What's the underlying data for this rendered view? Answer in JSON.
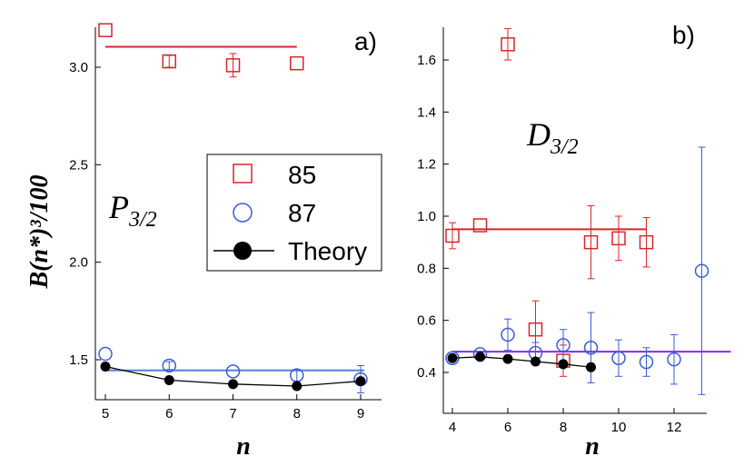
{
  "ylabel": "B(n*)³/100",
  "colors": {
    "iso85": "#d62728",
    "iso87": "#3d5bd4",
    "fit87_a": "#4a86d8",
    "fit87_b": "#8a2be2",
    "theory": "#000000"
  },
  "legend": {
    "entries": [
      {
        "label": "85",
        "marker": "square-open",
        "color": "#d62728"
      },
      {
        "label": "87",
        "marker": "circle-open",
        "color": "#3d5bd4"
      },
      {
        "label": "Theory",
        "marker": "circle-filled-line",
        "color": "#000000"
      }
    ]
  },
  "chart_data": [
    {
      "type": "scatter",
      "panel_label": "a)",
      "series_label": {
        "main": "P",
        "sub": "3/2"
      },
      "xlabel": "n",
      "xlim": [
        4.9,
        9.1
      ],
      "ylim": [
        1.3,
        3.25
      ],
      "xticks": [
        5,
        6,
        7,
        8,
        9
      ],
      "yticks": [
        1.5,
        2.0,
        2.5,
        3.0
      ],
      "ytick_labels": [
        "1.5",
        "2.0",
        "2.5",
        "3.0"
      ],
      "series": [
        {
          "name": "85",
          "marker": "square-open",
          "color": "#d62728",
          "x": [
            5,
            6,
            7,
            8
          ],
          "y": [
            3.19,
            3.03,
            3.01,
            3.02
          ],
          "err": [
            0.0,
            0.03,
            0.06,
            0.0
          ]
        },
        {
          "name": "87",
          "marker": "circle-open",
          "color": "#3d5bd4",
          "x": [
            5,
            6,
            7,
            8,
            9
          ],
          "y": [
            1.53,
            1.47,
            1.44,
            1.42,
            1.4
          ],
          "err": [
            0.0,
            0.02,
            0.0,
            0.03,
            0.07
          ]
        },
        {
          "name": "Theory",
          "marker": "circle-filled-line",
          "color": "#000000",
          "x": [
            5,
            6,
            7,
            8,
            9
          ],
          "y": [
            1.465,
            1.395,
            1.375,
            1.365,
            1.39
          ]
        }
      ],
      "fit_lines": [
        {
          "name": "85 fit",
          "color": "#d62728",
          "x": [
            5,
            8
          ],
          "y": [
            3.105,
            3.105
          ]
        },
        {
          "name": "87 fit",
          "color": "#4a86d8",
          "x": [
            5,
            9
          ],
          "y": [
            1.445,
            1.445
          ]
        }
      ]
    },
    {
      "type": "scatter",
      "panel_label": "b)",
      "series_label": {
        "main": "D",
        "sub": "3/2"
      },
      "xlabel": "n",
      "xlim": [
        3.7,
        13.2
      ],
      "ylim": [
        0.35,
        1.75
      ],
      "xticks": [
        4,
        6,
        8,
        10,
        12
      ],
      "yticks": [
        0.4,
        0.6,
        0.8,
        1.0,
        1.2,
        1.4,
        1.6
      ],
      "ytick_labels": [
        "0.4",
        "0.6",
        "0.8",
        "1.0",
        "1.2",
        "1.4",
        "1.6"
      ],
      "series": [
        {
          "name": "85",
          "marker": "square-open",
          "color": "#d62728",
          "x": [
            4,
            5,
            6,
            7,
            8,
            9,
            10,
            11
          ],
          "y": [
            0.925,
            0.965,
            1.66,
            0.565,
            0.445,
            0.9,
            0.915,
            0.9
          ],
          "err": [
            0.05,
            0.0,
            0.06,
            0.11,
            0.06,
            0.14,
            0.085,
            0.095
          ]
        },
        {
          "name": "87",
          "marker": "circle-open",
          "color": "#3d5bd4",
          "x": [
            4,
            5,
            6,
            7,
            8,
            9,
            10,
            11,
            12,
            13
          ],
          "y": [
            0.455,
            0.47,
            0.545,
            0.475,
            0.505,
            0.495,
            0.455,
            0.44,
            0.45,
            0.79
          ],
          "err": [
            0.0,
            0.0,
            0.06,
            0.04,
            0.06,
            0.135,
            0.07,
            0.055,
            0.095,
            0.475
          ]
        },
        {
          "name": "Theory",
          "marker": "circle-filled-line",
          "color": "#000000",
          "x": [
            4,
            5,
            6,
            7,
            8,
            9
          ],
          "y": [
            0.455,
            0.46,
            0.452,
            0.442,
            0.432,
            0.42
          ]
        }
      ],
      "fit_lines": [
        {
          "name": "85 fit",
          "color": "#d62728",
          "x": [
            4,
            11
          ],
          "y": [
            0.95,
            0.95
          ]
        },
        {
          "name": "87 fit",
          "color": "#8a2be2",
          "x": [
            4,
            13
          ],
          "y": [
            0.48,
            0.48
          ]
        }
      ]
    }
  ]
}
